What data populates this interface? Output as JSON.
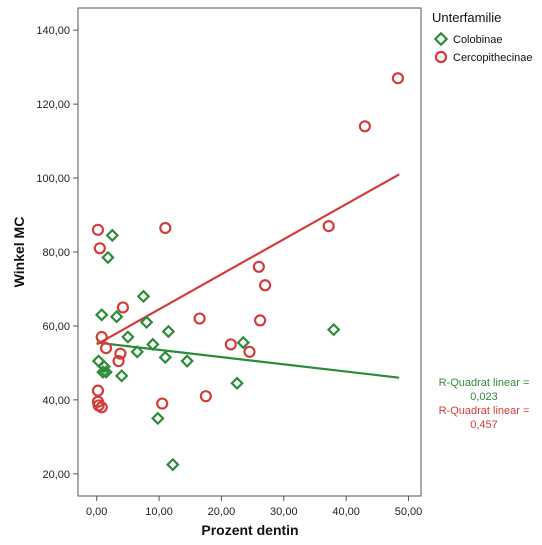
{
  "chart_data": {
    "type": "scatter",
    "xlabel": "Prozent dentin",
    "ylabel": "Winkel MC",
    "xlim": [
      -3,
      52
    ],
    "ylim": [
      14,
      146
    ],
    "x_ticks": [
      0,
      10,
      20,
      30,
      40,
      50
    ],
    "y_ticks": [
      20,
      40,
      60,
      80,
      100,
      120,
      140
    ],
    "x_tick_labels": [
      "0,00",
      "10,00",
      "20,00",
      "30,00",
      "40,00",
      "50,00"
    ],
    "y_tick_labels": [
      "20,00",
      "40,00",
      "60,00",
      "80,00",
      "100,00",
      "120,00",
      "140,00"
    ],
    "grid": false,
    "legend": {
      "title": "Unterfamilie",
      "placement": "top-right outside plot"
    },
    "series": [
      {
        "name": "Colobinae",
        "marker": "diamond",
        "color": "#2e8b3a",
        "points": [
          [
            0.3,
            50.5
          ],
          [
            0.8,
            63
          ],
          [
            1.0,
            47.5
          ],
          [
            1.2,
            49
          ],
          [
            1.5,
            47.5
          ],
          [
            1.8,
            78.5
          ],
          [
            2.5,
            84.5
          ],
          [
            3.2,
            62.5
          ],
          [
            4.0,
            46.5
          ],
          [
            5.0,
            57
          ],
          [
            6.5,
            53
          ],
          [
            7.5,
            68
          ],
          [
            8.0,
            61
          ],
          [
            9.0,
            55
          ],
          [
            9.8,
            35
          ],
          [
            11.0,
            51.5
          ],
          [
            11.5,
            58.5
          ],
          [
            12.2,
            22.5
          ],
          [
            14.5,
            50.5
          ],
          [
            22.5,
            44.5
          ],
          [
            23.5,
            55.5
          ],
          [
            38.0,
            59
          ]
        ],
        "fit": {
          "x": [
            0,
            48.5
          ],
          "y": [
            55.5,
            46
          ]
        }
      },
      {
        "name": "Cercopithecinae",
        "marker": "circle",
        "color": "#d43c3c",
        "points": [
          [
            0.2,
            86
          ],
          [
            0.2,
            42.5
          ],
          [
            0.2,
            39.5
          ],
          [
            0.3,
            38.5
          ],
          [
            0.8,
            38
          ],
          [
            0.5,
            81
          ],
          [
            0.8,
            57
          ],
          [
            1.5,
            54
          ],
          [
            3.5,
            50.5
          ],
          [
            3.8,
            52.5
          ],
          [
            4.2,
            65
          ],
          [
            10.5,
            39
          ],
          [
            11.0,
            86.5
          ],
          [
            16.5,
            62
          ],
          [
            17.5,
            41
          ],
          [
            21.5,
            55
          ],
          [
            24.5,
            53
          ],
          [
            26.0,
            76
          ],
          [
            26.2,
            61.5
          ],
          [
            27.0,
            71
          ],
          [
            37.2,
            87
          ],
          [
            43.0,
            114
          ],
          [
            48.3,
            127
          ]
        ],
        "fit": {
          "x": [
            0,
            48.5
          ],
          "y": [
            55,
            101
          ]
        }
      }
    ],
    "annotations": [
      {
        "text_line1": "R-Quadrat linear =",
        "text_line2": "0,023",
        "color": "#2e8b3a"
      },
      {
        "text_line1": "R-Quadrat linear =",
        "text_line2": "0,457",
        "color": "#d43c3c"
      }
    ]
  }
}
